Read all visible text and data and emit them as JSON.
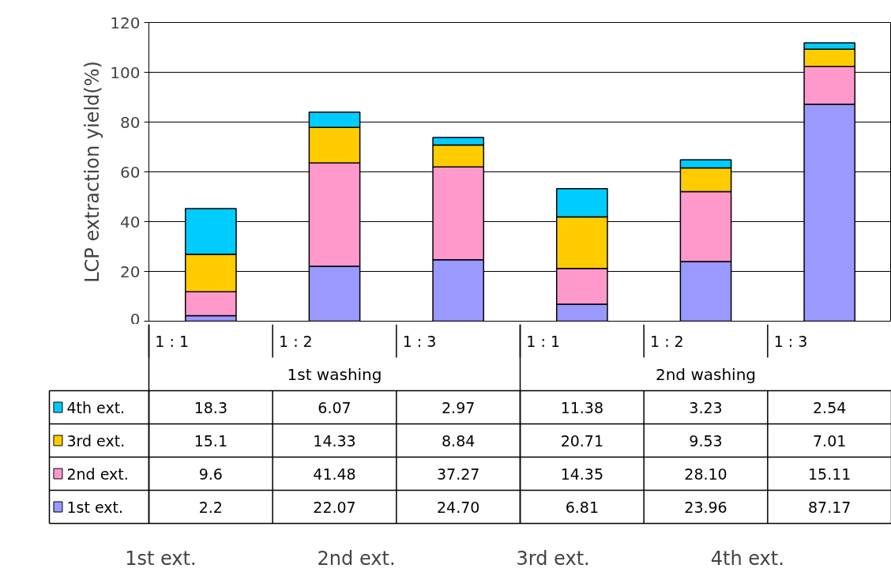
{
  "chart_data": {
    "type": "bar",
    "stacked": true,
    "ylabel": "LCP extraction yield(%)",
    "categories": [
      "1 : 1",
      "1 : 2",
      "1 : 3",
      "1 : 1",
      "1 : 2",
      "1 : 3"
    ],
    "annotations": [
      "1st washing",
      "2nd washing"
    ],
    "ylim": [
      0,
      120
    ],
    "yticks": [
      0,
      20,
      40,
      60,
      80,
      100,
      120
    ],
    "grid": "y",
    "legend": "bottom",
    "series": [
      {
        "name": "1st ext.",
        "color": "#9999ff",
        "values": [
          2.2,
          22.07,
          24.7,
          6.81,
          23.96,
          87.17
        ],
        "value_labels": [
          "2.2",
          "22.07",
          "24.70",
          "6.81",
          "23.96",
          "87.17"
        ]
      },
      {
        "name": "2nd ext.",
        "color": "#ff99cc",
        "values": [
          9.6,
          41.48,
          37.27,
          14.35,
          28.1,
          15.11
        ],
        "value_labels": [
          "9.6",
          "41.48",
          "37.27",
          "14.35",
          "28.10",
          "15.11"
        ]
      },
      {
        "name": "3rd ext.",
        "color": "#ffcc00",
        "values": [
          15.1,
          14.33,
          8.84,
          20.71,
          9.53,
          7.01
        ],
        "value_labels": [
          "15.1",
          "14.33",
          "8.84",
          "20.71",
          "9.53",
          "7.01"
        ]
      },
      {
        "name": "4th ext.",
        "color": "#00ccff",
        "values": [
          18.3,
          6.07,
          2.97,
          11.38,
          3.23,
          2.54
        ],
        "value_labels": [
          "18.3",
          "6.07",
          "2.97",
          "11.38",
          "3.23",
          "2.54"
        ]
      }
    ]
  }
}
